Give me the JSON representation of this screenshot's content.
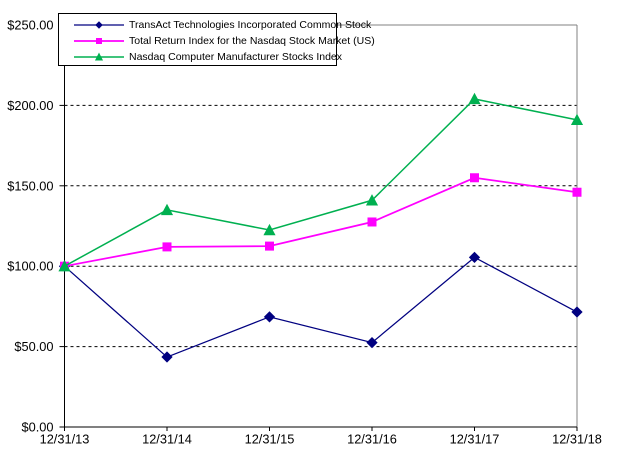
{
  "chart_data": {
    "type": "line",
    "title": "",
    "xlabel": "",
    "ylabel": "",
    "categories": [
      "12/31/13",
      "12/31/14",
      "12/31/15",
      "12/31/16",
      "12/31/17",
      "12/31/18"
    ],
    "series": [
      {
        "name": "TransAct Technologies Incorporated Common Stock",
        "color": "#000080",
        "marker": "diamond",
        "line_width": 1.25,
        "values": [
          100.0,
          43.5,
          68.5,
          52.5,
          105.5,
          71.5
        ]
      },
      {
        "name": "Total Return Index for the Nasdaq Stock Market (US)",
        "color": "#FF00FF",
        "marker": "square",
        "line_width": 1.75,
        "values": [
          100.0,
          112.0,
          112.5,
          127.5,
          155.0,
          146.0
        ]
      },
      {
        "name": "Nasdaq Computer Manufacturer Stocks Index",
        "color": "#00B050",
        "marker": "triangle",
        "line_width": 1.5,
        "values": [
          100.0,
          135.0,
          122.5,
          141.0,
          204.0,
          191.0
        ]
      }
    ],
    "ylim": [
      0,
      250
    ],
    "ytick_step": 50,
    "ytick_labels": [
      "$0.00",
      "$50.00",
      "$100.00",
      "$150.00",
      "$200.00",
      "$250.00"
    ],
    "ytick_prefix": "$",
    "grid": "dashed-horizontal",
    "legend_position": "top-left",
    "axis_color": "#000000",
    "plot_border_color": "#808080",
    "background": "#FFFFFF"
  }
}
